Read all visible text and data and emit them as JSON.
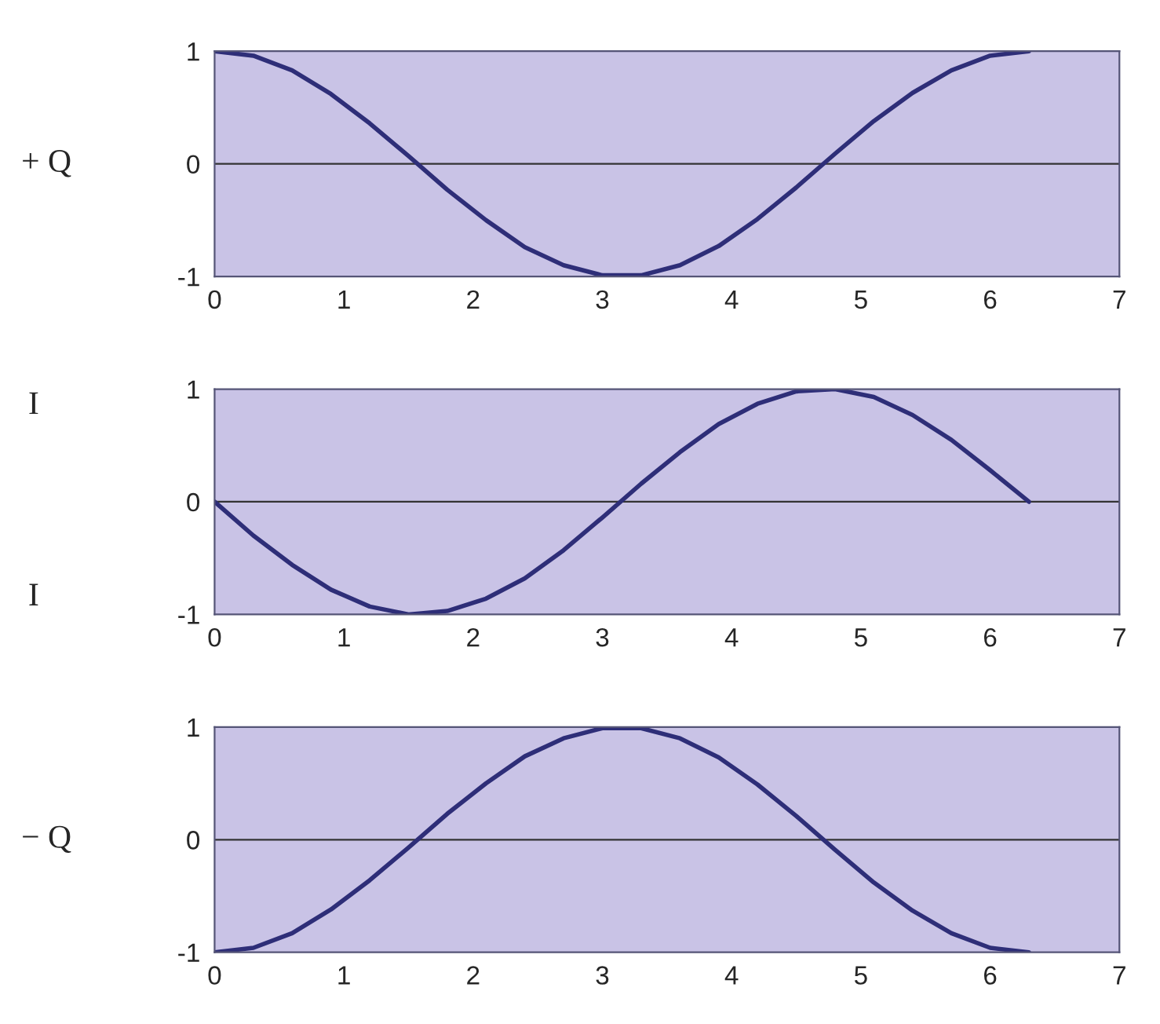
{
  "chart_data": [
    {
      "type": "line",
      "ylabel": "+ Q",
      "x": [
        0,
        0.3,
        0.6,
        0.9,
        1.2,
        1.5,
        1.8,
        2.1,
        2.4,
        2.7,
        3.0,
        3.3,
        3.6,
        3.9,
        4.2,
        4.5,
        4.8,
        5.1,
        5.4,
        5.7,
        6.0,
        6.3
      ],
      "series": [
        {
          "color": "#2e2e78",
          "values": [
            1,
            0.96,
            0.83,
            0.62,
            0.36,
            0.07,
            -0.23,
            -0.5,
            -0.74,
            -0.9,
            -0.99,
            -0.99,
            -0.9,
            -0.73,
            -0.49,
            -0.21,
            0.09,
            0.38,
            0.63,
            0.83,
            0.96,
            1
          ]
        }
      ],
      "xlim": [
        0,
        7
      ],
      "xticks": [
        0,
        1,
        2,
        3,
        4,
        5,
        6,
        7
      ],
      "ylim": [
        -1,
        1
      ],
      "yticks": [
        -1,
        0,
        1
      ],
      "ref_lines": [
        {
          "axis": "y",
          "value": 0
        }
      ],
      "grid": false,
      "legend": false
    },
    {
      "type": "line",
      "annotations": [
        "I",
        "I"
      ],
      "x": [
        0,
        0.3,
        0.6,
        0.9,
        1.2,
        1.5,
        1.8,
        2.1,
        2.4,
        2.7,
        3.0,
        3.3,
        3.6,
        3.9,
        4.2,
        4.5,
        4.8,
        5.1,
        5.4,
        5.7,
        6.0,
        6.3
      ],
      "series": [
        {
          "color": "#2e2e78",
          "values": [
            0,
            -0.3,
            -0.56,
            -0.78,
            -0.93,
            -1,
            -0.97,
            -0.86,
            -0.68,
            -0.43,
            -0.14,
            0.16,
            0.44,
            0.69,
            0.87,
            0.98,
            1,
            0.93,
            0.77,
            0.55,
            0.28,
            0
          ]
        }
      ],
      "xlim": [
        0,
        7
      ],
      "xticks": [
        0,
        1,
        2,
        3,
        4,
        5,
        6,
        7
      ],
      "ylim": [
        -1,
        1
      ],
      "yticks": [
        -1,
        0,
        1
      ],
      "ref_lines": [
        {
          "axis": "y",
          "value": 0
        }
      ],
      "grid": false,
      "legend": false
    },
    {
      "type": "line",
      "ylabel": "− Q",
      "x": [
        0,
        0.3,
        0.6,
        0.9,
        1.2,
        1.5,
        1.8,
        2.1,
        2.4,
        2.7,
        3.0,
        3.3,
        3.6,
        3.9,
        4.2,
        4.5,
        4.8,
        5.1,
        5.4,
        5.7,
        6.0,
        6.3
      ],
      "series": [
        {
          "color": "#2e2e78",
          "values": [
            -1,
            -0.96,
            -0.83,
            -0.62,
            -0.36,
            -0.07,
            0.23,
            0.5,
            0.74,
            0.9,
            0.99,
            0.99,
            0.9,
            0.73,
            0.49,
            0.21,
            -0.09,
            -0.38,
            -0.63,
            -0.83,
            -0.96,
            -1
          ]
        }
      ],
      "xlim": [
        0,
        7
      ],
      "xticks": [
        0,
        1,
        2,
        3,
        4,
        5,
        6,
        7
      ],
      "ylim": [
        -1,
        1
      ],
      "yticks": [
        -1,
        0,
        1
      ],
      "ref_lines": [
        {
          "axis": "y",
          "value": 0
        }
      ],
      "grid": false,
      "legend": false
    }
  ]
}
